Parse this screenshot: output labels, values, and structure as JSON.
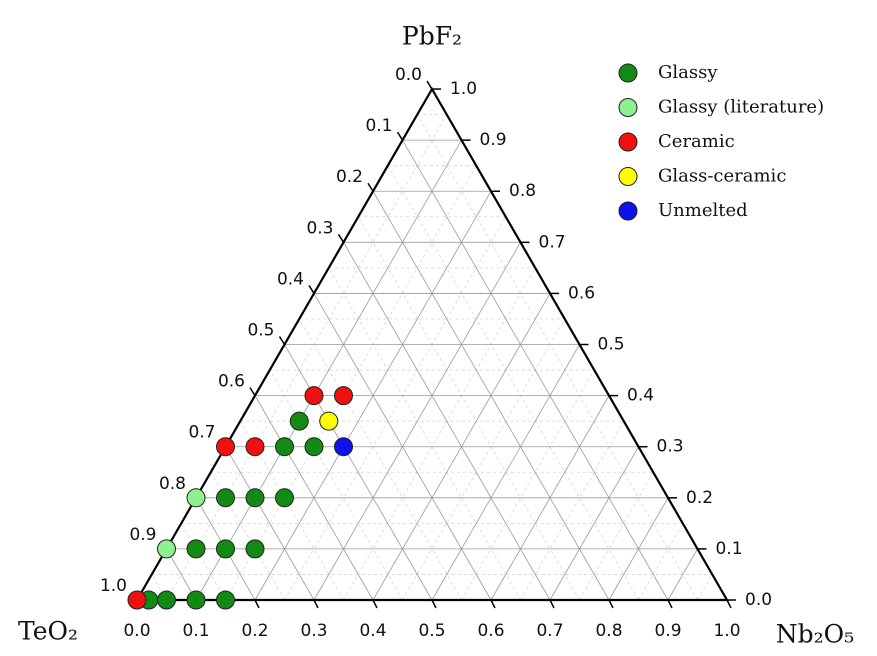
{
  "chart_data": {
    "type": "ternary",
    "axes": {
      "top": "PbF₂",
      "left": "TeO₂",
      "right": "Nb₂O₅"
    },
    "ticks": [
      {
        "value": 0,
        "label": "0.0"
      },
      0.1,
      0.2,
      0.3,
      0.4,
      0.5,
      0.6,
      0.7,
      0.8,
      0.9,
      {
        "value": 1,
        "label": "1.0"
      }
    ],
    "minor_grid": [
      0.05,
      0.15,
      0.25,
      0.35,
      0.45,
      0.55,
      0.65,
      0.75,
      0.85,
      0.95
    ],
    "legend": "top-right",
    "series": [
      {
        "name": "Glassy",
        "color": "#138a13",
        "TeO2": [
          0.55,
          0.6,
          0.55,
          0.75,
          0.7,
          0.65,
          0.85,
          0.8,
          0.75,
          0.98,
          0.95,
          0.9,
          0.85
        ],
        "Nb2O5": [
          0.1,
          0.1,
          0.15,
          0.05,
          0.1,
          0.15,
          0.05,
          0.1,
          0.15,
          0.02,
          0.05,
          0.1,
          0.15
        ],
        "PbF2": [
          0.35,
          0.3,
          0.3,
          0.2,
          0.2,
          0.2,
          0.1,
          0.1,
          0.1,
          0,
          0,
          0,
          0
        ]
      },
      {
        "name": "Glassy (literature)",
        "color": "#8ef08e",
        "TeO2": [
          0.8,
          0.9
        ],
        "Nb2O5": [
          0,
          0
        ],
        "PbF2": [
          0.2,
          0.1
        ]
      },
      {
        "name": "Ceramic",
        "color": "#f01010",
        "TeO2": [
          0.5,
          0.45,
          0.7,
          0.65,
          1
        ],
        "Nb2O5": [
          0.1,
          0.15,
          0,
          0.05,
          0
        ],
        "PbF2": [
          0.4,
          0.4,
          0.3,
          0.3,
          0
        ]
      },
      {
        "name": "Glass-ceramic",
        "color": "#ffff00",
        "TeO2": [
          0.5
        ],
        "Nb2O5": [
          0.15
        ],
        "PbF2": [
          0.35
        ]
      },
      {
        "name": "Unmelted",
        "color": "#1010e8",
        "TeO2": [
          0.5
        ],
        "Nb2O5": [
          0.2
        ],
        "PbF2": [
          0.3
        ]
      }
    ]
  }
}
